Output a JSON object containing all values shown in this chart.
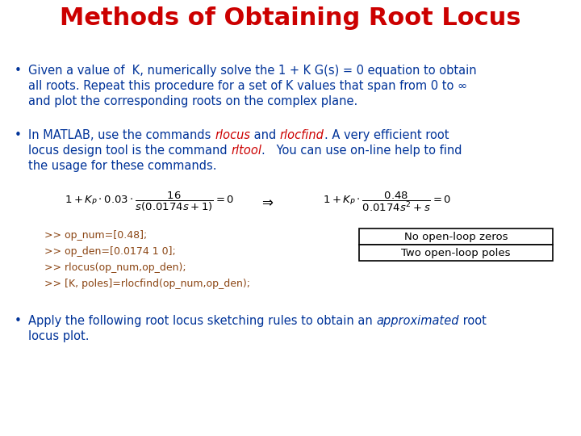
{
  "title": "Methods of Obtaining Root Locus",
  "title_color": "#CC0000",
  "background_color": "#FFFFFF",
  "bullet_color": "#003399",
  "red_color": "#CC0000",
  "black_color": "#000000",
  "code_color": "#8B4513",
  "code_lines": [
    ">> op_num=[0.48];",
    ">> op_den=[0.0174 1 0];",
    ">> rlocus(op_num,op_den);",
    ">> [K, poles]=rlocfind(op_num,op_den);"
  ],
  "box1_text": "No open-loop zeros",
  "box2_text": "Two open-loop poles"
}
